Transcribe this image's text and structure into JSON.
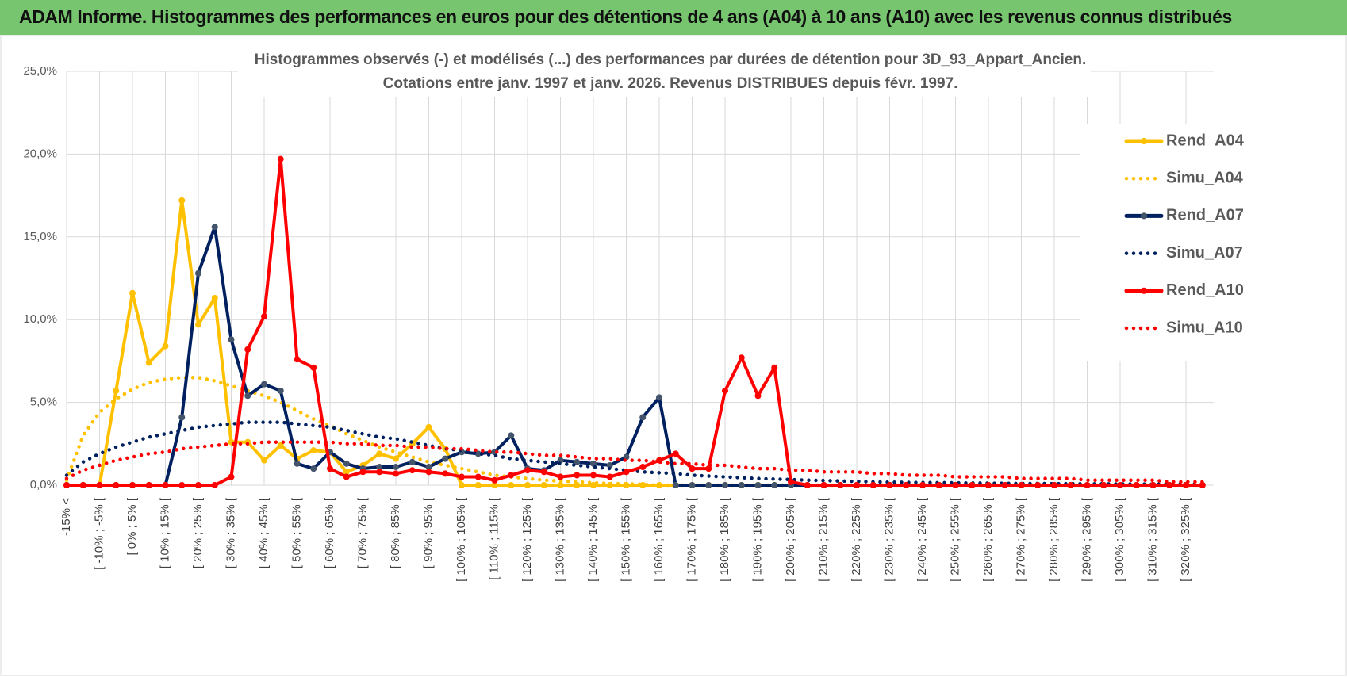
{
  "header": {
    "title": "ADAM Informe. Histogrammes des performances en euros pour des détentions de 4 ans (A04) à 10 ans (A10) avec les revenus connus distribués"
  },
  "chart_data": {
    "type": "line",
    "title": "Histogrammes observés (-) et modélisés (...) des performances par durées de détention pour 3D_93_Appart_Ancien.",
    "subtitle": "Cotations entre janv. 1997 et janv. 2026. Revenus DISTRIBUES depuis févr. 1997.",
    "categories": [
      "-15% <",
      null,
      "[ -10% ; -5% [",
      null,
      "[ 0% ; 5% [",
      null,
      "[ 10% ; 15% [",
      null,
      "[ 20% ; 25% [",
      null,
      "[ 30% ; 35% [",
      null,
      "[ 40% ; 45% [",
      null,
      "[ 50% ; 55% [",
      null,
      "[ 60% ; 65% [",
      null,
      "[ 70% ; 75% [",
      null,
      "[ 80% ; 85% [",
      null,
      "[ 90% ; 95% [",
      null,
      "[ 100% ; 105% [",
      null,
      "[ 110% ; 115% [",
      null,
      "[ 120% ; 125% [",
      null,
      "[ 130% ; 135% [",
      null,
      "[ 140% ; 145% [",
      null,
      "[ 150% ; 155% [",
      null,
      "[ 160% ; 165% [",
      null,
      "[ 170% ; 175% [",
      null,
      "[ 180% ; 185% [",
      null,
      "[ 190% ; 195% [",
      null,
      "[ 200% ; 205% [",
      null,
      "[ 210% ; 215% [",
      null,
      "[ 220% ; 225% [",
      null,
      "[ 230% ; 235% [",
      null,
      "[ 240% ; 245% [",
      null,
      "[ 250% ; 255% [",
      null,
      "[ 260% ; 265% [",
      null,
      "[ 270% ; 275% [",
      null,
      "[ 280% ; 285% [",
      null,
      "[ 290% ; 295% [",
      null,
      "[ 300% ; 305% [",
      null,
      "[ 310% ; 315% [",
      null,
      "[ 320% ; 325% [",
      null
    ],
    "ylim": [
      0,
      25
    ],
    "yticks": [
      {
        "value": 0,
        "label": "0,0%"
      },
      {
        "value": 5,
        "label": "5,0%"
      },
      {
        "value": 10,
        "label": "10,0%"
      },
      {
        "value": 15,
        "label": "15,0%"
      },
      {
        "value": 20,
        "label": "20,0%"
      },
      {
        "value": 25,
        "label": "25,0%"
      }
    ],
    "grid": true,
    "legend": "right",
    "series": [
      {
        "name": "Rend_A04",
        "color": "#ffc000",
        "style": "solid",
        "values": [
          0,
          0,
          0,
          5.7,
          11.6,
          7.4,
          8.4,
          17.2,
          9.7,
          11.3,
          2.6,
          2.6,
          1.5,
          2.4,
          1.6,
          2.1,
          2.0,
          0.8,
          1.2,
          1.9,
          1.6,
          2.5,
          3.5,
          2.2,
          0,
          0,
          0,
          0,
          0,
          0,
          0,
          0,
          0,
          0,
          0,
          0,
          0,
          0,
          0,
          0,
          0,
          0,
          0,
          0,
          0,
          0,
          0,
          0,
          0,
          0,
          0,
          0,
          0,
          0,
          0,
          0,
          0,
          0,
          0,
          0,
          0,
          0,
          0,
          0,
          0,
          0,
          0,
          0,
          0,
          0
        ]
      },
      {
        "name": "Simu_A04",
        "color": "#ffc000",
        "style": "dotted",
        "values": [
          0.3,
          3.0,
          4.4,
          5.2,
          5.8,
          6.2,
          6.4,
          6.5,
          6.5,
          6.3,
          6.0,
          5.7,
          5.4,
          5.0,
          4.5,
          4.0,
          3.6,
          3.1,
          2.7,
          2.3,
          2.0,
          1.7,
          1.4,
          1.2,
          1.0,
          0.8,
          0.6,
          0.5,
          0.4,
          0.3,
          0.25,
          0.2,
          0.15,
          0.1,
          0.08,
          0.05,
          0,
          0,
          0,
          0,
          0,
          0,
          0,
          0,
          0,
          0,
          0,
          0,
          0,
          0,
          0,
          0,
          0,
          0,
          0,
          0,
          0,
          0,
          0,
          0,
          0,
          0,
          0,
          0,
          0,
          0,
          0,
          0,
          0,
          0
        ]
      },
      {
        "name": "Rend_A07",
        "color": "#002060",
        "marker": "#44546a",
        "style": "solid",
        "values": [
          0,
          0,
          0,
          0,
          0,
          0,
          0,
          4.1,
          12.8,
          15.6,
          8.8,
          5.4,
          6.1,
          5.7,
          1.3,
          1.0,
          2.0,
          1.3,
          1.0,
          1.1,
          1.1,
          1.4,
          1.1,
          1.6,
          2.0,
          1.9,
          2.0,
          3.0,
          1.0,
          0.9,
          1.5,
          1.4,
          1.3,
          1.2,
          1.7,
          4.1,
          5.3,
          0,
          0,
          0,
          0,
          0,
          0,
          0,
          0,
          0,
          0,
          0,
          0,
          0,
          0,
          0,
          0,
          0,
          0,
          0,
          0,
          0,
          0,
          0,
          0,
          0,
          0,
          0,
          0,
          0,
          0,
          0,
          0,
          0
        ]
      },
      {
        "name": "Simu_A07",
        "color": "#002060",
        "style": "dotted",
        "values": [
          0.6,
          1.4,
          1.9,
          2.3,
          2.6,
          2.9,
          3.1,
          3.3,
          3.5,
          3.6,
          3.7,
          3.8,
          3.8,
          3.8,
          3.7,
          3.6,
          3.5,
          3.3,
          3.1,
          2.9,
          2.8,
          2.6,
          2.4,
          2.2,
          2.1,
          1.9,
          1.8,
          1.6,
          1.5,
          1.4,
          1.3,
          1.2,
          1.1,
          1.0,
          0.9,
          0.8,
          0.75,
          0.7,
          0.6,
          0.55,
          0.5,
          0.45,
          0.4,
          0.37,
          0.34,
          0.3,
          0.28,
          0.25,
          0.23,
          0.2,
          0.18,
          0.17,
          0.16,
          0.15,
          0.14,
          0.13,
          0.12,
          0.11,
          0.1,
          0.1,
          0.09,
          0.09,
          0.08,
          0.08,
          0.07,
          0.07,
          0.06,
          0.06,
          0.05,
          0.05
        ]
      },
      {
        "name": "Rend_A10",
        "color": "#ff0000",
        "style": "solid",
        "values": [
          0,
          0,
          0,
          0,
          0,
          0,
          0,
          0,
          0,
          0,
          0.5,
          8.2,
          10.2,
          19.7,
          7.6,
          7.1,
          1.0,
          0.5,
          0.8,
          0.8,
          0.7,
          0.9,
          0.8,
          0.7,
          0.5,
          0.5,
          0.3,
          0.6,
          0.9,
          0.8,
          0.5,
          0.6,
          0.6,
          0.5,
          0.8,
          1.1,
          1.5,
          1.9,
          1.0,
          1.0,
          5.7,
          7.7,
          5.4,
          7.1,
          0.2,
          0,
          0,
          0,
          0,
          0,
          0,
          0,
          0,
          0,
          0,
          0,
          0,
          0,
          0,
          0,
          0,
          0,
          0,
          0,
          0,
          0,
          0,
          0,
          0,
          0
        ]
      },
      {
        "name": "Simu_A10",
        "color": "#ff0000",
        "style": "dotted",
        "values": [
          0.4,
          0.9,
          1.2,
          1.5,
          1.7,
          1.9,
          2.0,
          2.2,
          2.3,
          2.4,
          2.5,
          2.5,
          2.6,
          2.6,
          2.6,
          2.6,
          2.6,
          2.5,
          2.5,
          2.4,
          2.4,
          2.3,
          2.3,
          2.2,
          2.2,
          2.1,
          2.0,
          2.0,
          1.9,
          1.8,
          1.8,
          1.7,
          1.6,
          1.6,
          1.5,
          1.5,
          1.4,
          1.3,
          1.3,
          1.2,
          1.2,
          1.1,
          1.0,
          1.0,
          0.9,
          0.9,
          0.8,
          0.8,
          0.8,
          0.7,
          0.7,
          0.6,
          0.6,
          0.6,
          0.5,
          0.5,
          0.5,
          0.5,
          0.4,
          0.4,
          0.4,
          0.4,
          0.3,
          0.3,
          0.3,
          0.3,
          0.3,
          0.2,
          0.2,
          0.2
        ]
      }
    ]
  }
}
